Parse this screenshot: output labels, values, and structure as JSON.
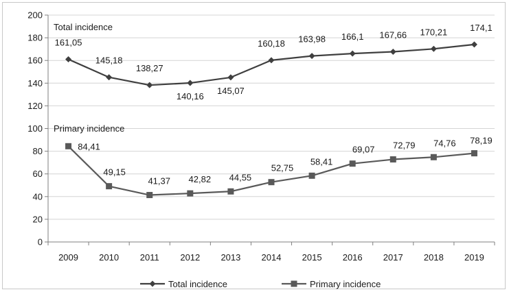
{
  "chart_data": {
    "type": "line",
    "title": "",
    "xlabel": "",
    "ylabel": "",
    "ylim": [
      0,
      200
    ],
    "yticks": [
      0,
      20,
      40,
      60,
      80,
      100,
      120,
      140,
      160,
      180,
      200
    ],
    "grid": true,
    "legend_position": "bottom",
    "categories": [
      "2009",
      "2010",
      "2011",
      "2012",
      "2013",
      "2014",
      "2015",
      "2016",
      "2017",
      "2018",
      "2019"
    ],
    "series": [
      {
        "name": "Total incidence",
        "marker": "diamond",
        "color": "#3f3f3f",
        "values": [
          161.05,
          145.18,
          138.27,
          140.16,
          145.07,
          160.18,
          163.98,
          166.1,
          167.66,
          170.21,
          174.1
        ],
        "data_labels": [
          "161,05",
          "145,18",
          "138,27",
          "140,16",
          "145,07",
          "160,18",
          "163,98",
          "166,1",
          "167,66",
          "170,21",
          "174,1"
        ]
      },
      {
        "name": "Primary incidence",
        "marker": "square",
        "color": "#595959",
        "values": [
          84.41,
          49.15,
          41.37,
          42.82,
          44.55,
          52.75,
          58.41,
          69.07,
          72.79,
          74.76,
          78.19
        ],
        "data_labels": [
          "84,41",
          "49,15",
          "41,37",
          "42,82",
          "44,55",
          "52,75",
          "58,41",
          "69,07",
          "72,79",
          "74,76",
          "78,19"
        ]
      }
    ],
    "annotations": [
      "Total incidence",
      "Primary incidence"
    ]
  }
}
